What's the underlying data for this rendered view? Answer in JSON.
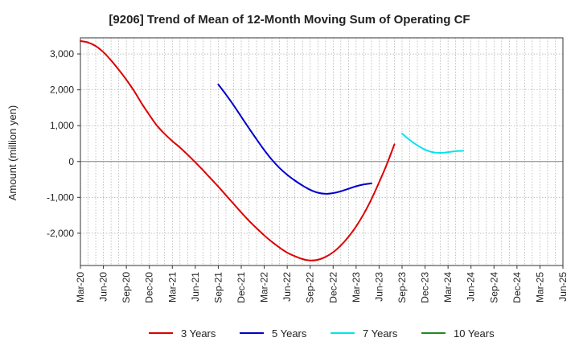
{
  "chart_data": {
    "type": "line",
    "title": "[9206]  Trend of Mean of 12-Month Moving Sum of Operating CF",
    "xlabel": "",
    "ylabel": "Amount (million yen)",
    "ylim": [
      -2900,
      3450
    ],
    "yticks": [
      3000,
      2000,
      1000,
      0,
      -1000,
      -2000
    ],
    "ytick_labels": [
      "3,000",
      "2,000",
      "1,000",
      "0",
      "-1,000",
      "-2,000"
    ],
    "x_categories": [
      "Mar-20",
      "Jun-20",
      "Sep-20",
      "Dec-20",
      "Mar-21",
      "Jun-21",
      "Sep-21",
      "Dec-21",
      "Mar-22",
      "Jun-22",
      "Sep-22",
      "Dec-22",
      "Mar-23",
      "Jun-23",
      "Sep-23",
      "Dec-23",
      "Mar-24",
      "Jun-24",
      "Sep-24",
      "Dec-24",
      "Mar-25",
      "Jun-25"
    ],
    "grid": true,
    "legend_position": "bottom",
    "series": [
      {
        "name": "3 Years",
        "color": "#dd0000",
        "x_start": "Mar-20",
        "values": [
          3360,
          3320,
          3220,
          3050,
          2820,
          2560,
          2280,
          1970,
          1620,
          1300,
          1000,
          770,
          570,
          390,
          190,
          -20,
          -240,
          -470,
          -700,
          -940,
          -1180,
          -1420,
          -1650,
          -1860,
          -2060,
          -2240,
          -2400,
          -2540,
          -2640,
          -2720,
          -2760,
          -2740,
          -2660,
          -2530,
          -2340,
          -2100,
          -1810,
          -1460,
          -1050,
          -580,
          -80,
          480
        ]
      },
      {
        "name": "5 Years",
        "color": "#0000cc",
        "x_start": "Sep-21",
        "values": [
          2150,
          1870,
          1570,
          1250,
          930,
          620,
          320,
          50,
          -180,
          -370,
          -530,
          -670,
          -790,
          -870,
          -900,
          -880,
          -830,
          -760,
          -690,
          -640,
          -610
        ]
      },
      {
        "name": "7 Years",
        "color": "#00e5ee",
        "x_start": "Sep-23",
        "values": [
          780,
          600,
          450,
          330,
          260,
          240,
          260,
          290,
          300
        ]
      },
      {
        "name": "10 Years",
        "color": "#228b22",
        "x_start": "",
        "values": []
      }
    ]
  }
}
